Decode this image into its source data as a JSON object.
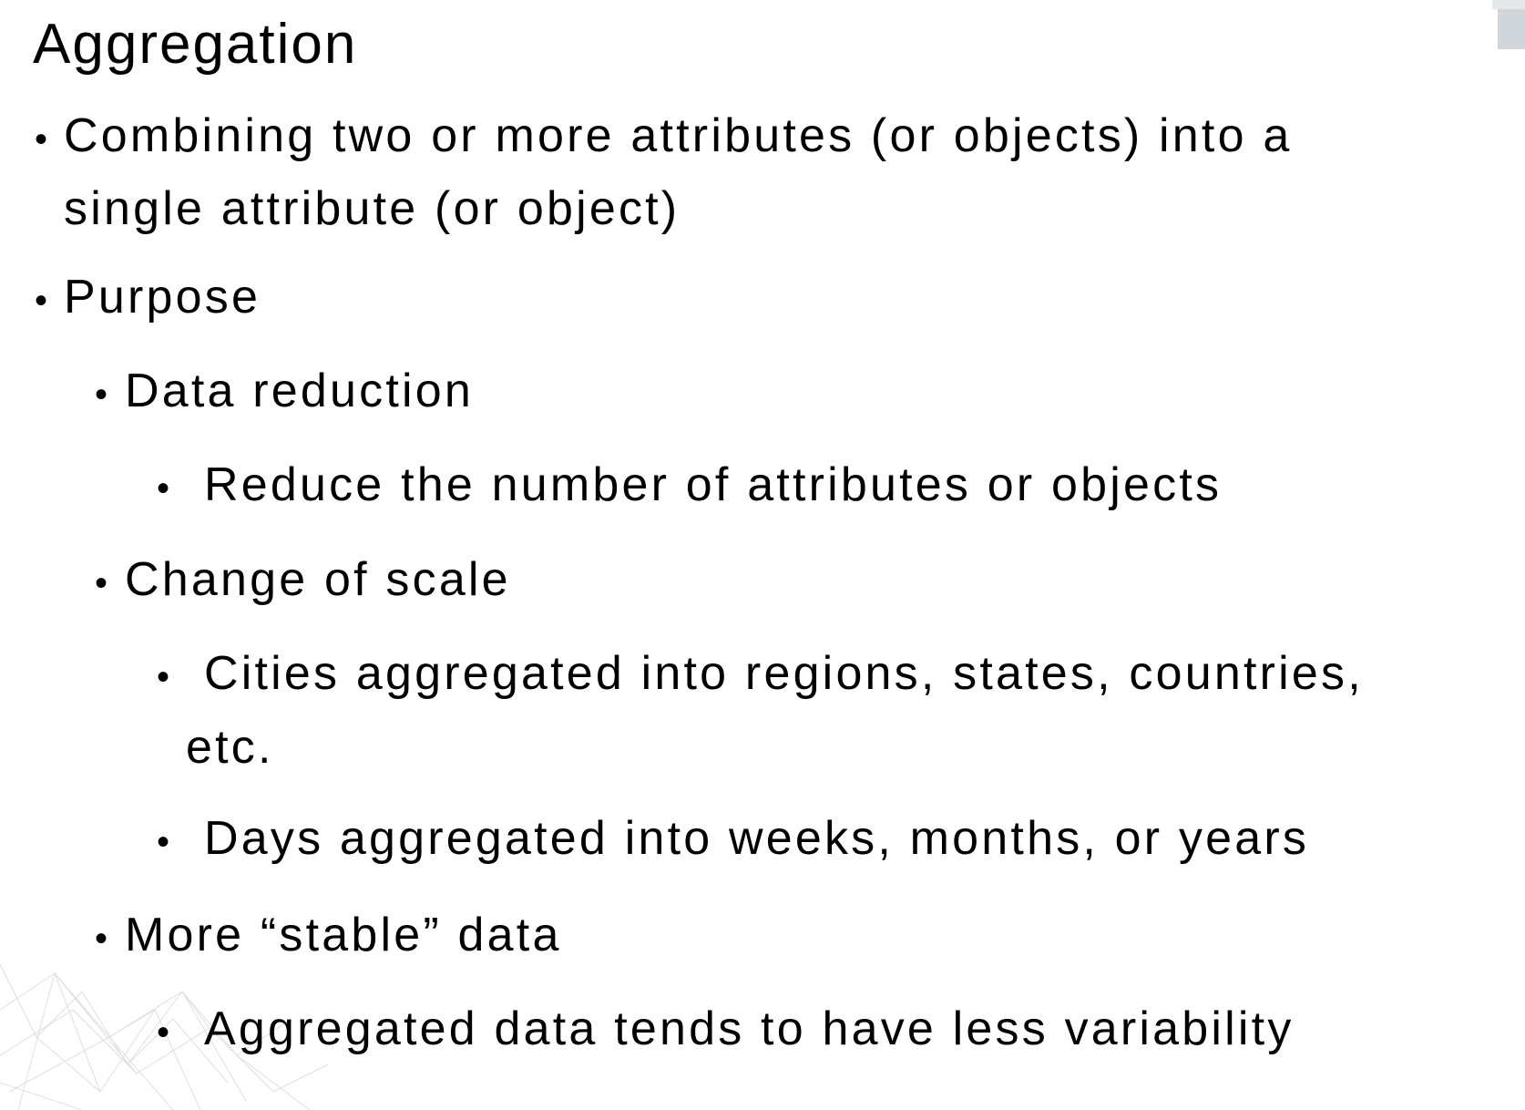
{
  "slide": {
    "title": "Aggregation",
    "bullets": [
      {
        "level": 1,
        "text": "Combining two or more attributes (or objects) into a"
      },
      {
        "level": 1,
        "text": "single attribute (or object)",
        "continuation": true
      },
      {
        "level": 1,
        "text": "Purpose"
      },
      {
        "level": 2,
        "text": "Data reduction"
      },
      {
        "level": 3,
        "text": "Reduce the number of attributes or objects"
      },
      {
        "level": 2,
        "text": "Change of scale"
      },
      {
        "level": 3,
        "text": "Cities aggregated into regions, states, countries,"
      },
      {
        "level": 3,
        "text": "etc.",
        "continuation": true
      },
      {
        "level": 3,
        "text": "Days aggregated into weeks, months, or years"
      },
      {
        "level": 2,
        "text": "More “stable” data"
      },
      {
        "level": 3,
        "text": "Aggregated data tends to have less variability"
      }
    ]
  },
  "colors": {
    "text": "#000000",
    "background": "#ffffff",
    "decoration": "#c8ced3"
  }
}
